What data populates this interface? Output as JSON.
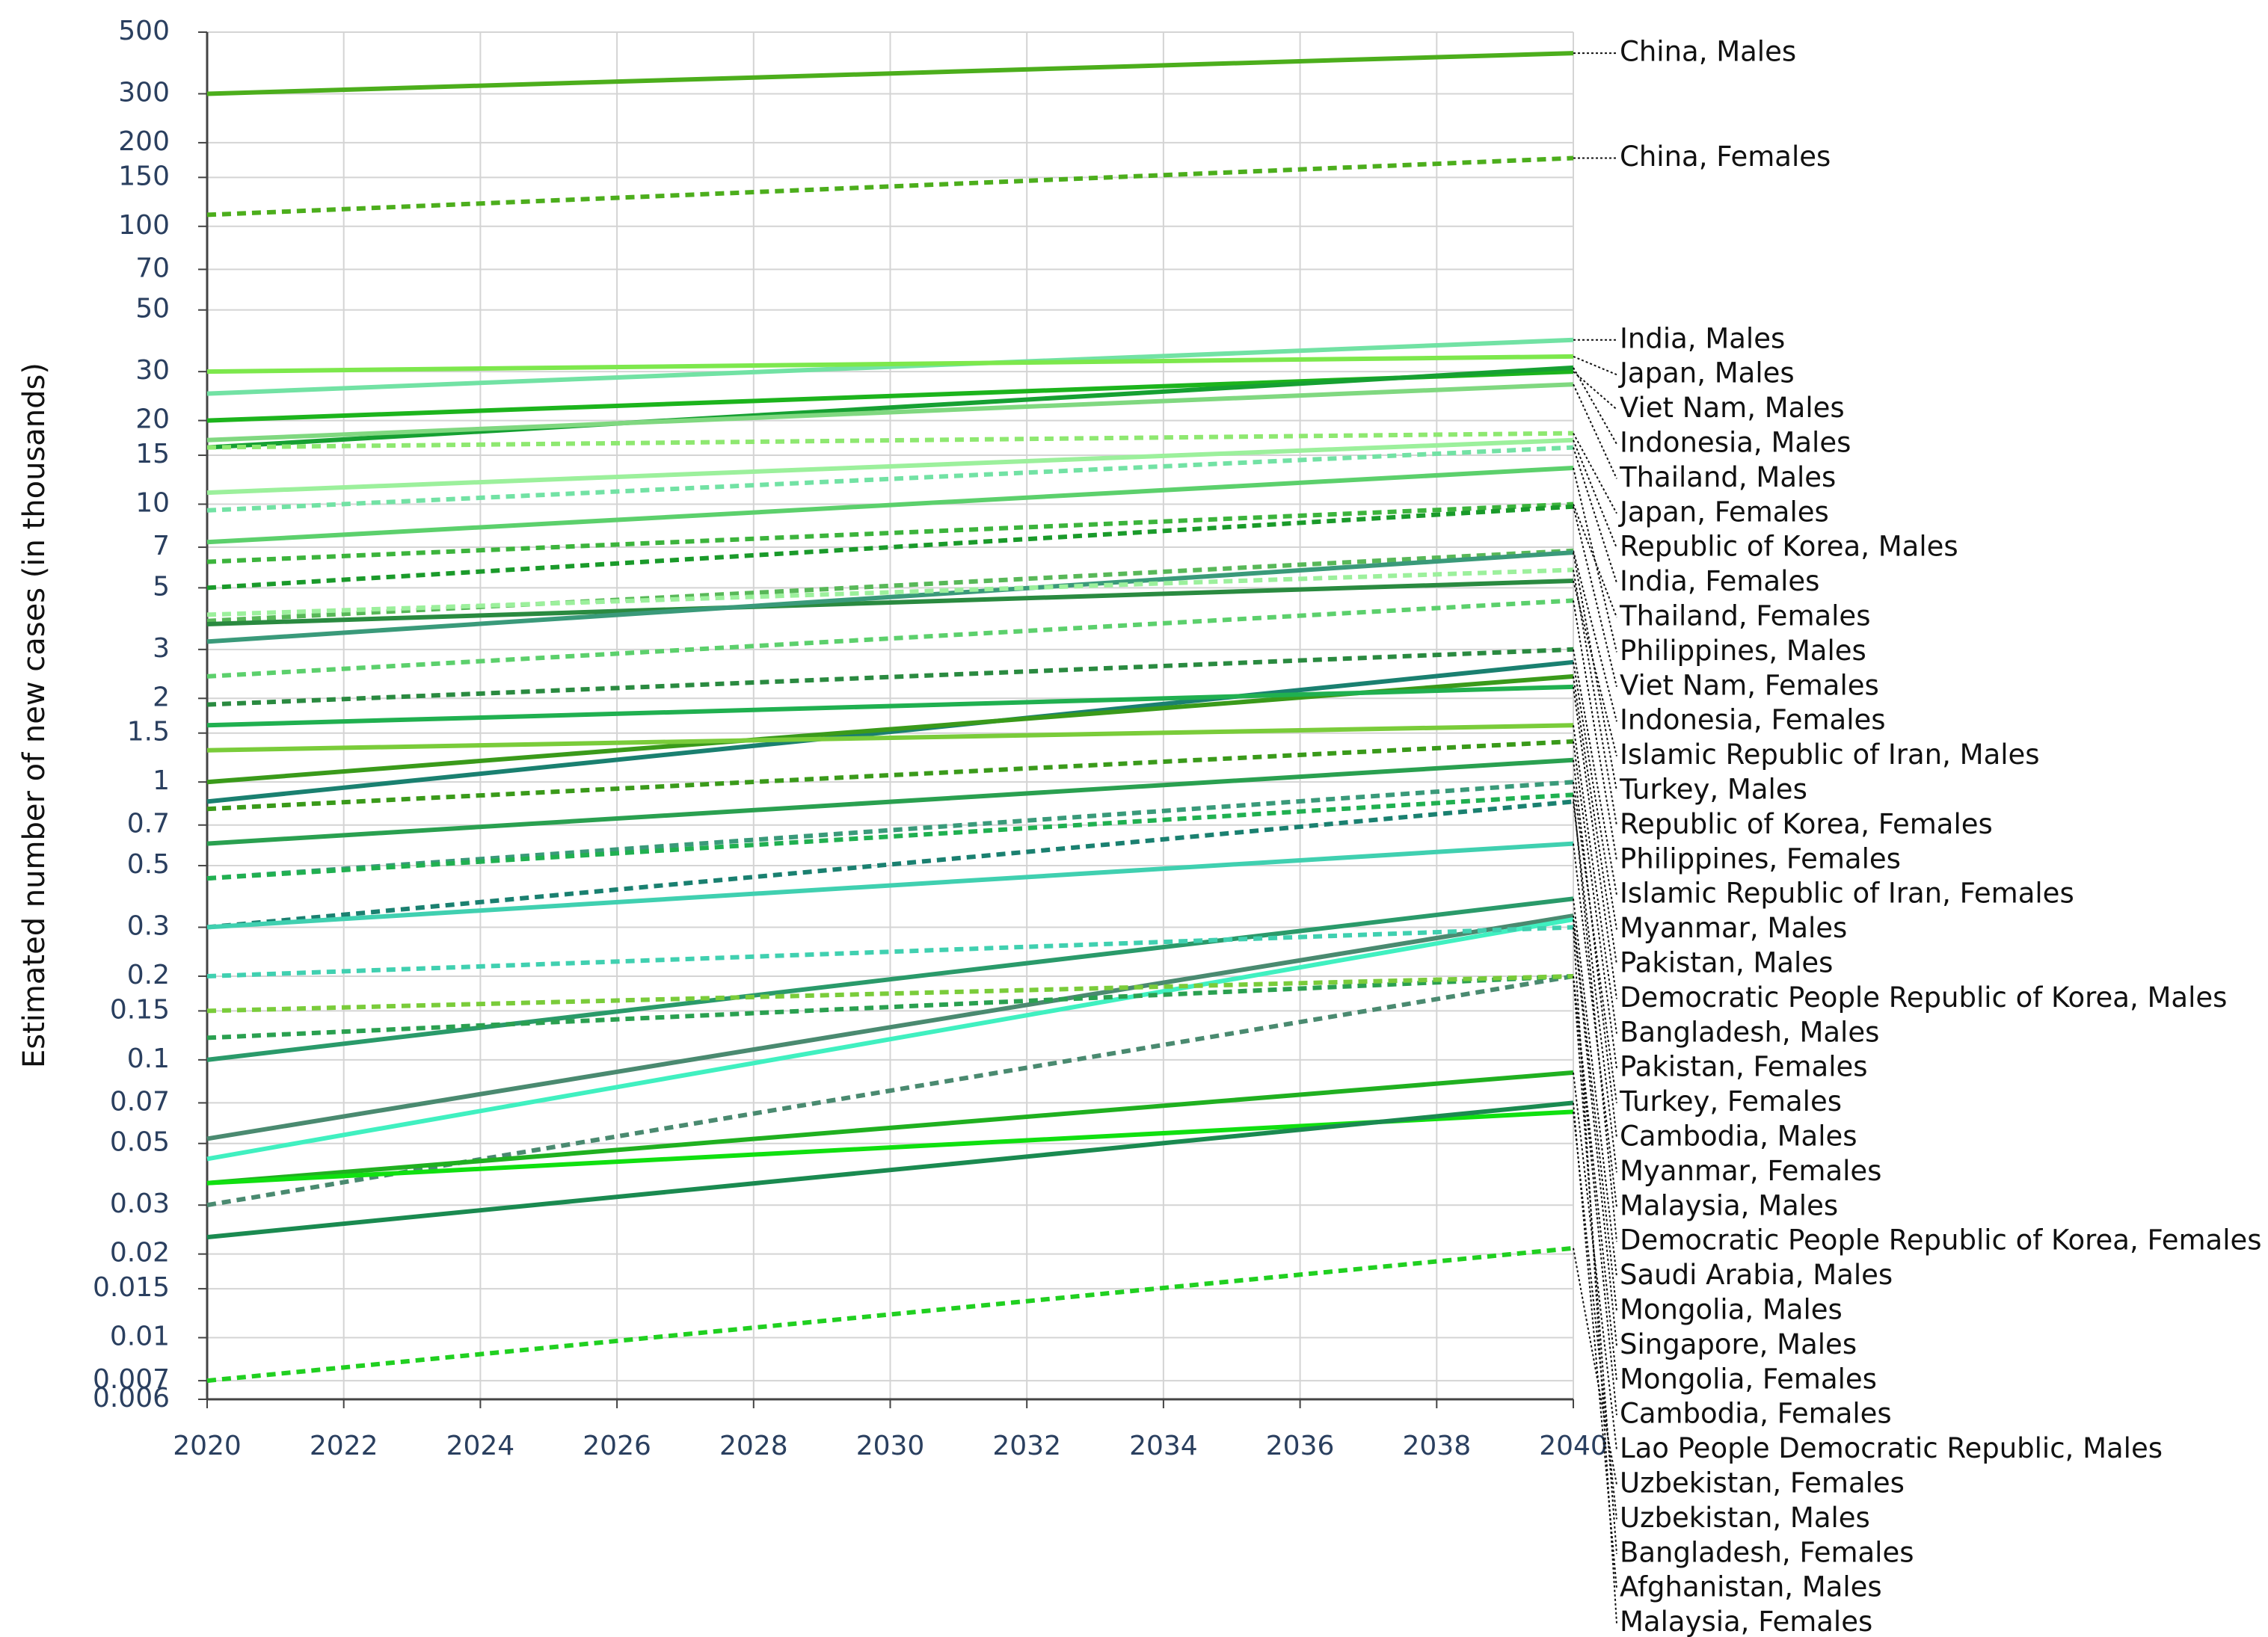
{
  "chart_data": {
    "type": "line",
    "y_label": "Estimated number of new cases (in thousands)",
    "y_scale": "log",
    "grid": true,
    "x": [
      2020,
      2040
    ],
    "xlim": [
      2020,
      2040
    ],
    "xticks": [
      2020,
      2022,
      2024,
      2026,
      2028,
      2030,
      2032,
      2034,
      2036,
      2038,
      2040
    ],
    "ylim": [
      0.006,
      500
    ],
    "yticks": [
      0.006,
      0.007,
      0.01,
      0.015,
      0.02,
      0.03,
      0.05,
      0.07,
      0.1,
      0.15,
      0.2,
      0.3,
      0.5,
      0.7,
      1,
      1.5,
      2,
      3,
      5,
      7,
      10,
      15,
      20,
      30,
      50,
      70,
      100,
      150,
      200,
      300,
      500
    ],
    "series": [
      {
        "name": "China, Males",
        "color": "#4cae1c",
        "line_style": "solid",
        "values": [
          300,
          420
        ]
      },
      {
        "name": "China, Females",
        "color": "#4cae1c",
        "line_style": "dotted",
        "values": [
          110,
          176
        ]
      },
      {
        "name": "India, Males",
        "color": "#72e2a4",
        "line_style": "solid",
        "values": [
          25,
          39
        ]
      },
      {
        "name": "Japan, Males",
        "color": "#7de84c",
        "line_style": "solid",
        "values": [
          30,
          34
        ]
      },
      {
        "name": "Viet Nam, Males",
        "color": "#1cb41c",
        "line_style": "solid",
        "values": [
          20,
          30
        ]
      },
      {
        "name": "Indonesia, Males",
        "color": "#16a032",
        "line_style": "solid",
        "values": [
          16,
          31
        ]
      },
      {
        "name": "Thailand, Males",
        "color": "#80d880",
        "line_style": "solid",
        "values": [
          17,
          27
        ]
      },
      {
        "name": "Japan, Females",
        "color": "#8ee870",
        "line_style": "dotted",
        "values": [
          16,
          18
        ]
      },
      {
        "name": "Republic of Korea, Males",
        "color": "#9cf09c",
        "line_style": "solid",
        "values": [
          11,
          17
        ]
      },
      {
        "name": "India, Females",
        "color": "#72e2a4",
        "line_style": "dotted",
        "values": [
          9.5,
          16
        ]
      },
      {
        "name": "Thailand, Females",
        "color": "#3cb43c",
        "line_style": "dotted",
        "values": [
          6.2,
          10
        ]
      },
      {
        "name": "Philippines, Males",
        "color": "#5cd06c",
        "line_style": "solid",
        "values": [
          7.3,
          13.5
        ]
      },
      {
        "name": "Viet Nam, Females",
        "color": "#1a9a2a",
        "line_style": "dotted",
        "values": [
          5,
          9.8
        ]
      },
      {
        "name": "Indonesia, Females",
        "color": "#58b858",
        "line_style": "dotted",
        "values": [
          3.8,
          6.8
        ]
      },
      {
        "name": "Islamic Republic of Iran, Males",
        "color": "#2a8a40",
        "line_style": "solid",
        "values": [
          3.7,
          5.3
        ]
      },
      {
        "name": "Turkey, Males",
        "color": "#3a9a7a",
        "line_style": "solid",
        "values": [
          3.2,
          6.7
        ]
      },
      {
        "name": "Republic of Korea, Females",
        "color": "#9cf09c",
        "line_style": "dotted",
        "values": [
          4,
          5.8
        ]
      },
      {
        "name": "Philippines, Females",
        "color": "#5cd06c",
        "line_style": "dotted",
        "values": [
          2.4,
          4.5
        ]
      },
      {
        "name": "Islamic Republic of Iran, Females",
        "color": "#2a8a40",
        "line_style": "dotted",
        "values": [
          1.9,
          3
        ]
      },
      {
        "name": "Myanmar, Males",
        "color": "#1a8070",
        "line_style": "solid",
        "values": [
          0.85,
          2.7
        ]
      },
      {
        "name": "Pakistan, Males",
        "color": "#3a9a1a",
        "line_style": "solid",
        "values": [
          1,
          2.4
        ]
      },
      {
        "name": "Democratic People Republic of Korea, Males",
        "color": "#20b050",
        "line_style": "solid",
        "values": [
          1.6,
          2.2
        ]
      },
      {
        "name": "Bangladesh, Males",
        "color": "#7acc3a",
        "line_style": "solid",
        "values": [
          1.3,
          1.6
        ]
      },
      {
        "name": "Pakistan, Females",
        "color": "#3a9a1a",
        "line_style": "dotted",
        "values": [
          0.8,
          1.4
        ]
      },
      {
        "name": "Turkey, Females",
        "color": "#3a9a7a",
        "line_style": "dotted",
        "values": [
          0.45,
          1
        ]
      },
      {
        "name": "Cambodia, Males",
        "color": "#2aa050",
        "line_style": "solid",
        "values": [
          0.6,
          1.2
        ]
      },
      {
        "name": "Myanmar, Females",
        "color": "#1a8070",
        "line_style": "dotted",
        "values": [
          0.3,
          0.85
        ]
      },
      {
        "name": "Malaysia, Males",
        "color": "#40d0b0",
        "line_style": "solid",
        "values": [
          0.3,
          0.6
        ]
      },
      {
        "name": "Democratic People Republic of Korea, Females",
        "color": "#20b050",
        "line_style": "dotted",
        "values": [
          0.45,
          0.9
        ]
      },
      {
        "name": "Saudi Arabia, Males",
        "color": "#2a9a6a",
        "line_style": "solid",
        "values": [
          0.1,
          0.38
        ]
      },
      {
        "name": "Mongolia, Males",
        "color": "#4a8a70",
        "line_style": "solid",
        "values": [
          0.052,
          0.33
        ]
      },
      {
        "name": "Singapore, Males",
        "color": "#40f0c0",
        "line_style": "solid",
        "values": [
          0.044,
          0.32
        ]
      },
      {
        "name": "Mongolia, Females",
        "color": "#4a8a70",
        "line_style": "dotted",
        "values": [
          0.03,
          0.2
        ]
      },
      {
        "name": "Cambodia, Females",
        "color": "#2aa050",
        "line_style": "dotted",
        "values": [
          0.12,
          0.2
        ]
      },
      {
        "name": "Lao People Democratic Republic, Males",
        "color": "#20b020",
        "line_style": "solid",
        "values": [
          0.036,
          0.09
        ]
      },
      {
        "name": "Uzbekistan, Females",
        "color": "#20d020",
        "line_style": "dotted",
        "values": [
          0.007,
          0.021
        ]
      },
      {
        "name": "Uzbekistan, Males",
        "color": "#10e010",
        "line_style": "solid",
        "values": [
          0.036,
          0.065
        ]
      },
      {
        "name": "Bangladesh, Females",
        "color": "#7acc3a",
        "line_style": "dotted",
        "values": [
          0.15,
          0.2
        ]
      },
      {
        "name": "Afghanistan, Males",
        "color": "#1a8a50",
        "line_style": "solid",
        "values": [
          0.023,
          0.07
        ]
      },
      {
        "name": "Malaysia, Females",
        "color": "#40d0b0",
        "line_style": "dotted",
        "values": [
          0.2,
          0.3
        ]
      }
    ]
  }
}
